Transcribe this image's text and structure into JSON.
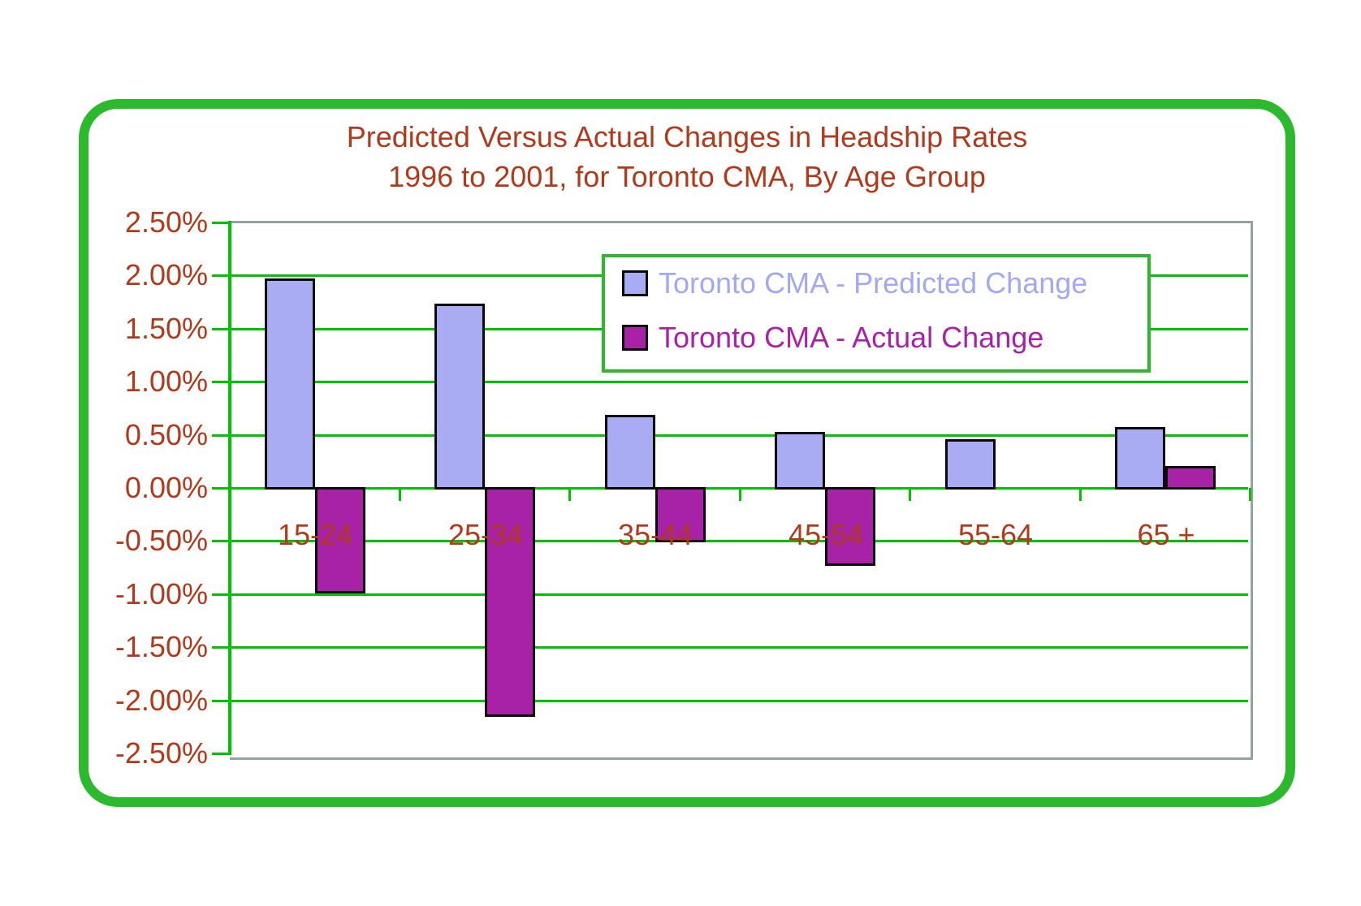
{
  "figure": {
    "title_line1": "Predicted Versus Actual Changes in Headship Rates",
    "title_line2": "1996 to 2001, for Toronto CMA, By Age Group"
  },
  "legend": {
    "items": [
      {
        "label": "Toronto CMA - Predicted Change",
        "series": "predicted",
        "text_color": "#A2A8F2",
        "swatch_color": "#A9ACF2"
      },
      {
        "label": "Toronto CMA - Actual Change",
        "series": "actual",
        "text_color": "#A822A8",
        "swatch_color": "#A822A8"
      }
    ]
  },
  "chart_data": {
    "type": "bar",
    "title": "Predicted Versus Actual Changes in Headship Rates 1996 to 2001, for Toronto CMA, By Age Group",
    "categories": [
      "15-24",
      "25-34",
      "35-44",
      "45-54",
      "55-64",
      "65 +"
    ],
    "series": [
      {
        "name": "Toronto CMA - Predicted Change",
        "color": "#A9ACF2",
        "values": [
          1.98,
          1.74,
          0.69,
          0.53,
          0.46,
          0.58
        ]
      },
      {
        "name": "Toronto CMA - Actual Change",
        "color": "#A822A8",
        "values": [
          -0.98,
          -2.14,
          -0.5,
          -0.72,
          0.0,
          0.21
        ]
      }
    ],
    "ylabel": "",
    "xlabel": "",
    "ylim": [
      -2.5,
      2.5
    ],
    "ytick_step": 0.5,
    "ytick_labels": [
      "2.50%",
      "2.00%",
      "1.50%",
      "1.00%",
      "0.50%",
      "0.00%",
      "-0.50%",
      "-1.00%",
      "-1.50%",
      "-2.00%",
      "-2.50%"
    ],
    "grid": true,
    "legend_position": "inside-top-right"
  },
  "colors": {
    "frame_green": "#2DB92D",
    "grid_green": "#00C300",
    "plot_border_gray": "#95A2A2",
    "text_brick": "#B03A1B",
    "bar_outline": "#0a0a0a",
    "predicted_fill": "#A9ACF2",
    "actual_fill": "#A822A8",
    "background": "#FFFFFF"
  }
}
